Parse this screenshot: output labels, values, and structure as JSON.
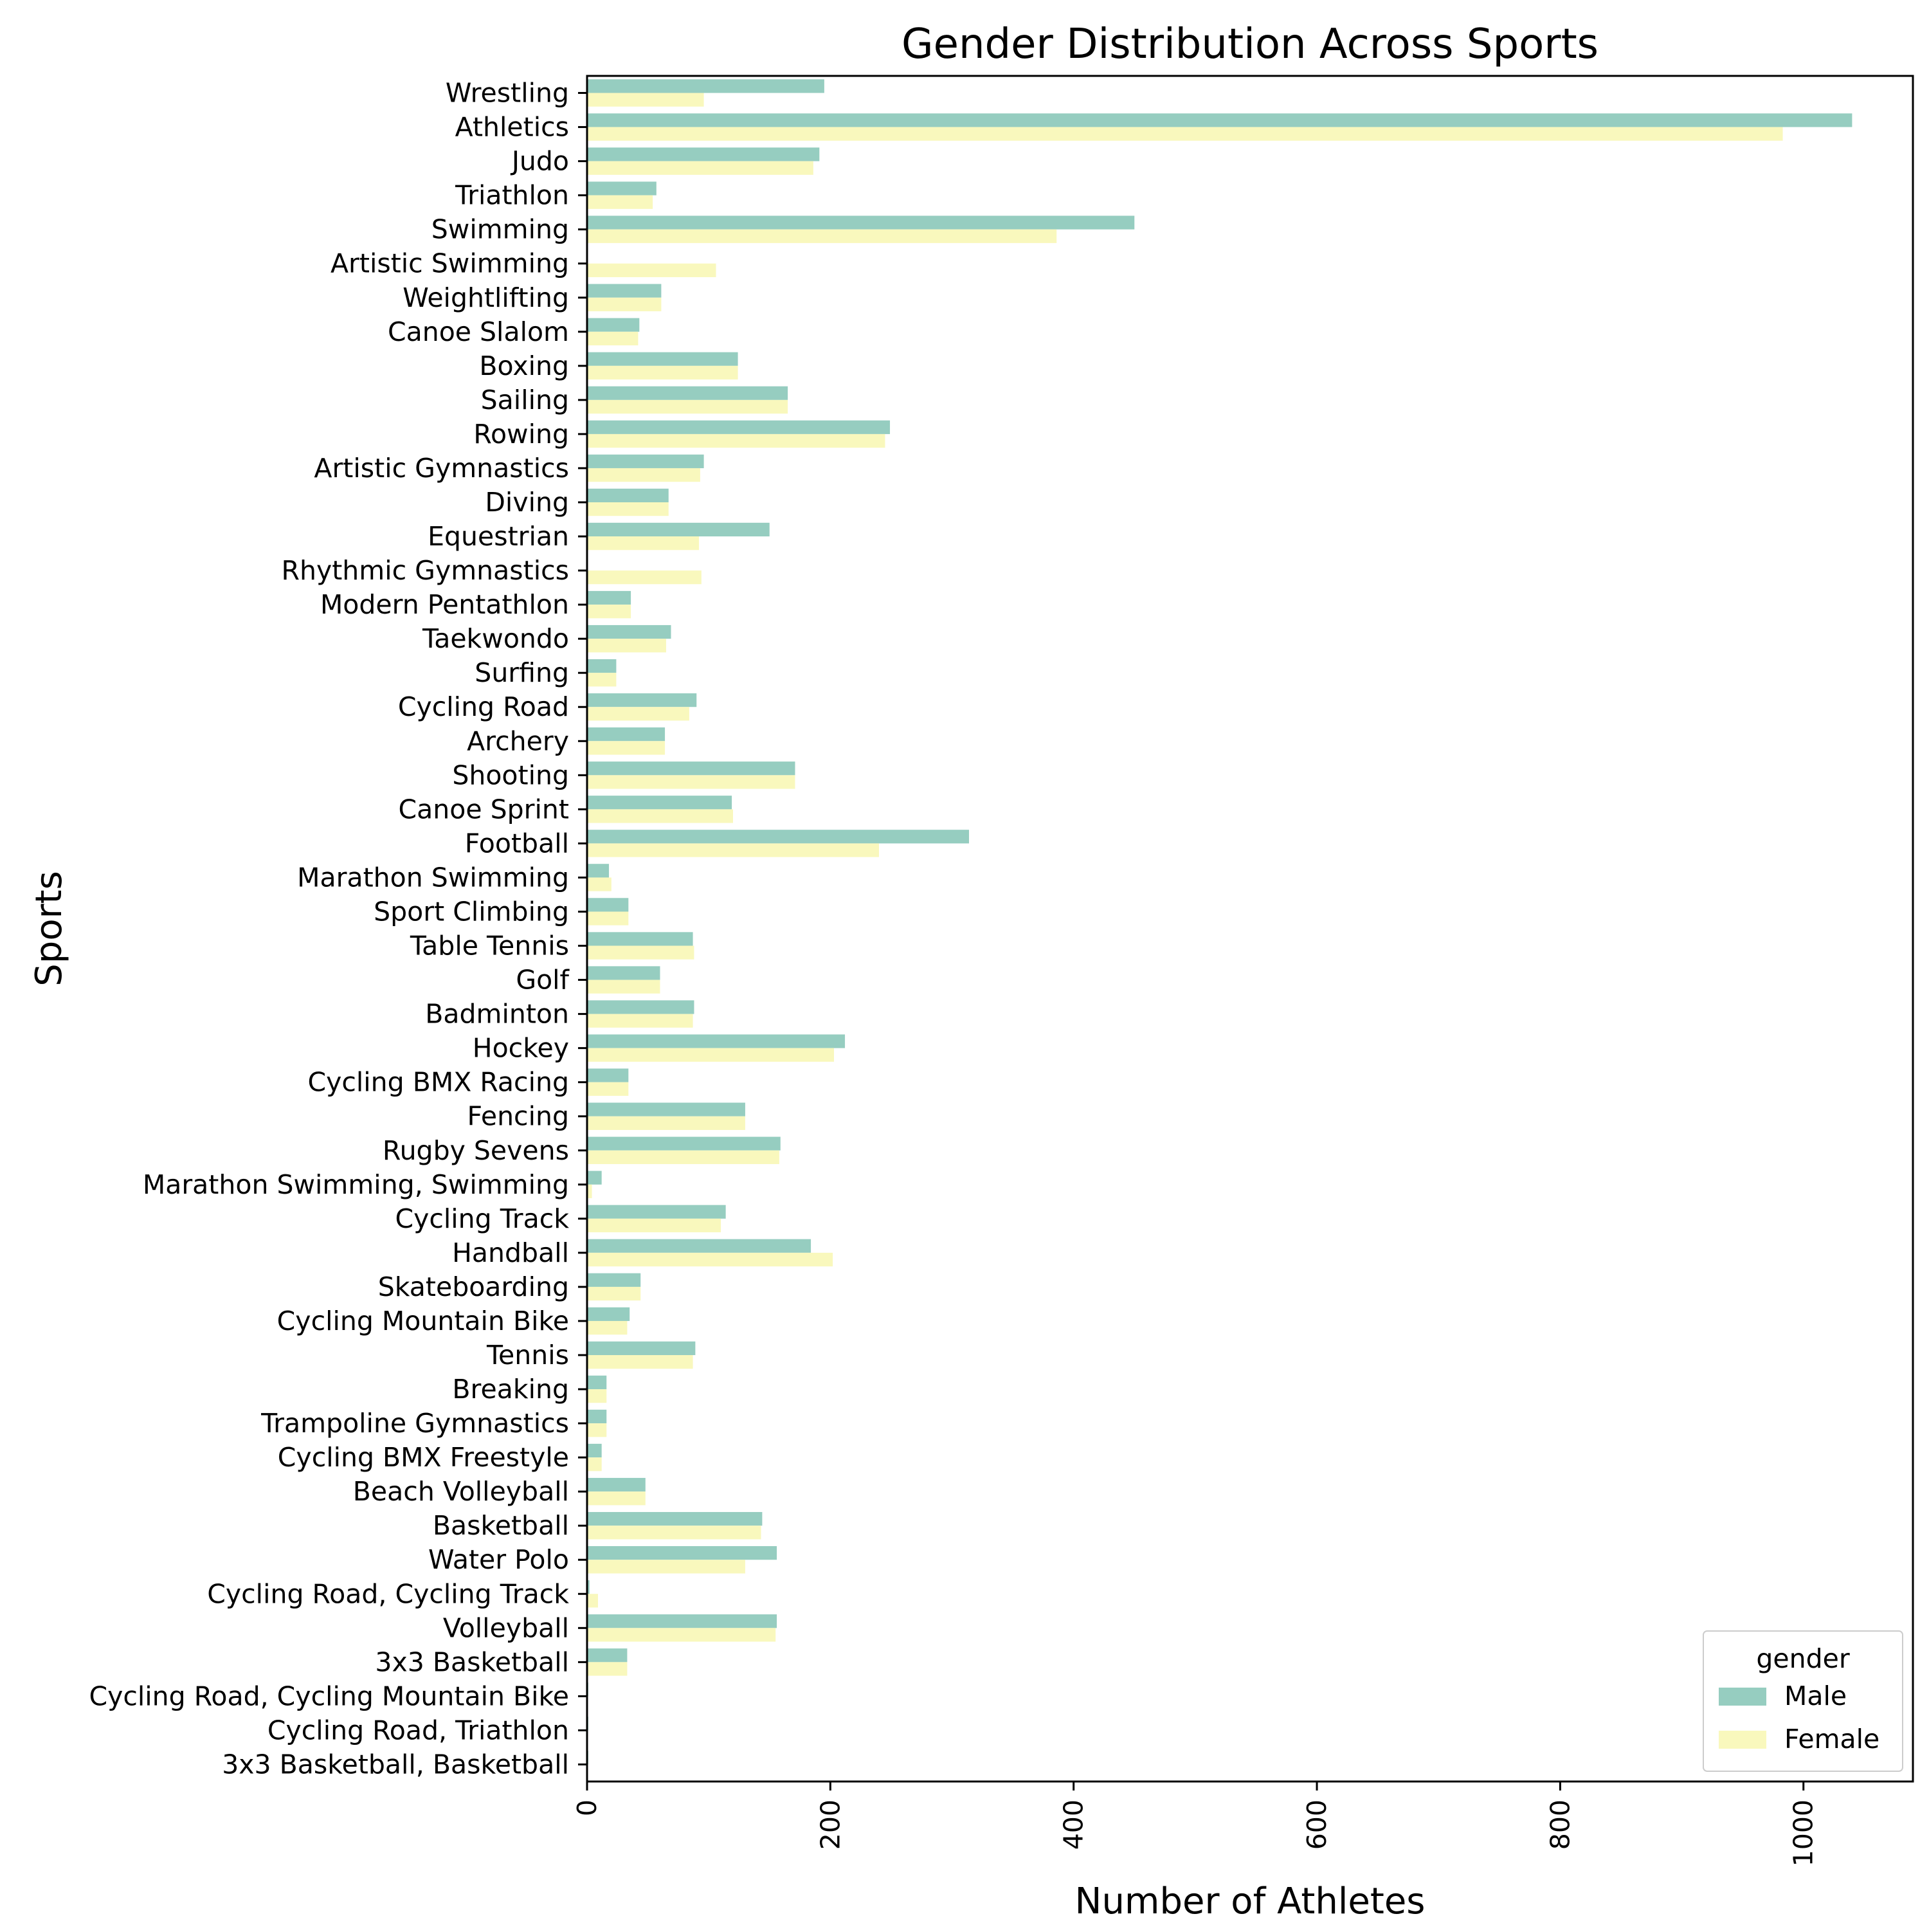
{
  "chart_data": {
    "type": "bar",
    "orientation": "horizontal",
    "title": "Gender Distribution Across Sports",
    "xlabel": "Number of Athletes",
    "ylabel": "Sports",
    "xlim": [
      0,
      1090
    ],
    "xticks": [
      0,
      200,
      400,
      600,
      800,
      1000
    ],
    "xtick_labels": [
      "0",
      "200",
      "400",
      "600",
      "800",
      "1000"
    ],
    "xtick_rotation": 90,
    "grid": false,
    "legend": {
      "title": "gender",
      "placement": "lower-right"
    },
    "categories": [
      "Wrestling",
      "Athletics",
      "Judo",
      "Triathlon",
      "Swimming",
      "Artistic Swimming",
      "Weightlifting",
      "Canoe Slalom",
      "Boxing",
      "Sailing",
      "Rowing",
      "Artistic Gymnastics",
      "Diving",
      "Equestrian",
      "Rhythmic Gymnastics",
      "Modern Pentathlon",
      "Taekwondo",
      "Surfing",
      "Cycling Road",
      "Archery",
      "Shooting",
      "Canoe Sprint",
      "Football",
      "Marathon Swimming",
      "Sport Climbing",
      "Table Tennis",
      "Golf",
      "Badminton",
      "Hockey",
      "Cycling BMX Racing",
      "Fencing",
      "Rugby Sevens",
      "Marathon Swimming, Swimming",
      "Cycling Track",
      "Handball",
      "Skateboarding",
      "Cycling Mountain Bike",
      "Tennis",
      "Breaking",
      "Trampoline Gymnastics",
      "Cycling BMX Freestyle",
      "Beach Volleyball",
      "Basketball",
      "Water Polo",
      "Cycling Road, Cycling Track",
      "Volleyball",
      "3x3 Basketball",
      "Cycling Road, Cycling Mountain Bike",
      "Cycling Road, Triathlon",
      "3x3 Basketball, Basketball"
    ],
    "series": [
      {
        "name": "Male",
        "color": "#96cdc0",
        "values": [
          195,
          1040,
          191,
          57,
          450,
          0,
          61,
          43,
          124,
          165,
          249,
          96,
          67,
          150,
          0,
          36,
          69,
          24,
          90,
          64,
          171,
          119,
          314,
          18,
          34,
          87,
          60,
          88,
          212,
          34,
          130,
          159,
          12,
          114,
          184,
          44,
          35,
          89,
          16,
          16,
          12,
          48,
          144,
          156,
          2,
          156,
          33,
          1,
          1,
          1
        ]
      },
      {
        "name": "Female",
        "color": "#f9f8bd",
        "values": [
          96,
          983,
          186,
          54,
          386,
          106,
          61,
          42,
          124,
          165,
          245,
          93,
          67,
          92,
          94,
          36,
          65,
          24,
          84,
          64,
          171,
          120,
          240,
          20,
          34,
          88,
          60,
          87,
          203,
          34,
          130,
          158,
          4,
          110,
          202,
          44,
          33,
          87,
          16,
          16,
          12,
          48,
          143,
          130,
          9,
          155,
          33,
          0,
          0,
          0
        ]
      }
    ]
  }
}
